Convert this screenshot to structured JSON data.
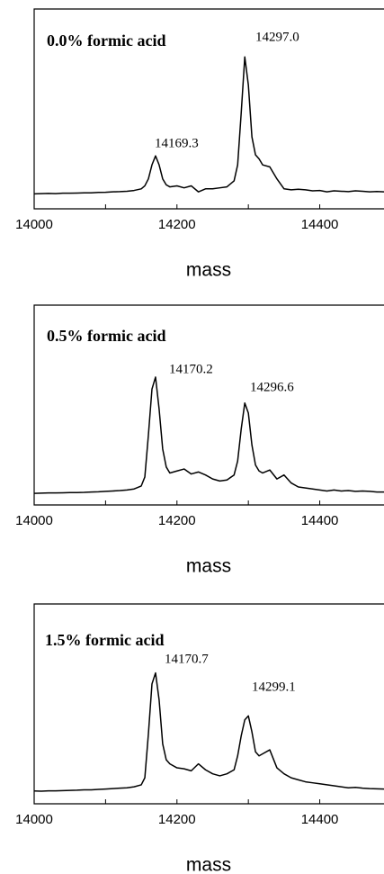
{
  "chart_data": [
    {
      "type": "line",
      "title": "0.0% formic acid",
      "annotations": [
        "14169.3",
        "14297.0"
      ],
      "xlabel": "mass",
      "x": [
        14000,
        14010,
        14020,
        14030,
        14040,
        14050,
        14060,
        14070,
        14080,
        14090,
        14100,
        14110,
        14120,
        14130,
        14140,
        14150,
        14155,
        14160,
        14165,
        14170,
        14175,
        14180,
        14185,
        14190,
        14200,
        14210,
        14220,
        14230,
        14240,
        14250,
        14260,
        14270,
        14280,
        14285,
        14290,
        14295,
        14300,
        14305,
        14310,
        14315,
        14320,
        14330,
        14340,
        14350,
        14360,
        14370,
        14380,
        14390,
        14400,
        14410,
        14420,
        14430,
        14440,
        14450,
        14460,
        14470,
        14480,
        14490
      ],
      "series": [
        {
          "color": "#000000",
          "values": [
            7.5,
            7.6,
            7.7,
            7.6,
            7.8,
            7.8,
            7.9,
            8.0,
            8.0,
            8.2,
            8.3,
            8.5,
            8.6,
            8.8,
            9.2,
            10.0,
            11.5,
            15,
            22,
            26.5,
            22,
            15,
            12,
            11,
            11.5,
            10.5,
            11.5,
            8.5,
            10,
            10,
            10.5,
            11,
            14,
            22,
            48,
            76,
            62,
            36,
            27,
            25,
            22,
            21,
            15,
            10,
            9.5,
            9.8,
            9.5,
            9,
            9.2,
            8.5,
            9,
            8.8,
            8.6,
            9,
            8.8,
            8.5,
            8.7,
            8.5
          ]
        }
      ],
      "xlim": [
        14000,
        14490
      ],
      "ylim": [
        0,
        100
      ],
      "xticks": [
        14000,
        14200,
        14400
      ],
      "x_minor_ticks": [
        14100,
        14300
      ]
    },
    {
      "type": "line",
      "title": "0.5% formic acid",
      "annotations": [
        "14170.2",
        "14296.6"
      ],
      "xlabel": "mass",
      "x": [
        14000,
        14010,
        14020,
        14030,
        14040,
        14050,
        14060,
        14070,
        14080,
        14090,
        14100,
        14110,
        14120,
        14130,
        14140,
        14150,
        14155,
        14160,
        14165,
        14170,
        14175,
        14180,
        14185,
        14190,
        14200,
        14210,
        14220,
        14230,
        14240,
        14250,
        14260,
        14270,
        14280,
        14285,
        14290,
        14295,
        14300,
        14305,
        14310,
        14315,
        14320,
        14330,
        14340,
        14350,
        14360,
        14370,
        14380,
        14390,
        14400,
        14410,
        14420,
        14430,
        14440,
        14450,
        14460,
        14470,
        14480,
        14490
      ],
      "series": [
        {
          "color": "#000000",
          "values": [
            5.8,
            5.9,
            6.0,
            6.0,
            6.1,
            6.2,
            6.2,
            6.3,
            6.5,
            6.6,
            6.8,
            7.0,
            7.2,
            7.5,
            8.0,
            9.5,
            14,
            35,
            58,
            64,
            48,
            28,
            19,
            16,
            17,
            18,
            15.5,
            16.5,
            15,
            13,
            12,
            12.5,
            15,
            22,
            38,
            51,
            46,
            30,
            20,
            17,
            16,
            17.5,
            13,
            15,
            11,
            9,
            8.5,
            8,
            7.5,
            7,
            7.5,
            7,
            7.2,
            6.8,
            7,
            6.8,
            6.5,
            6.5
          ]
        }
      ],
      "xlim": [
        14000,
        14490
      ],
      "ylim": [
        0,
        100
      ],
      "xticks": [
        14000,
        14200,
        14400
      ],
      "x_minor_ticks": [
        14100,
        14300
      ]
    },
    {
      "type": "line",
      "title": "1.5% formic acid",
      "annotations": [
        "14170.7",
        "14299.1"
      ],
      "xlabel": "mass",
      "x": [
        14000,
        14010,
        14020,
        14030,
        14040,
        14050,
        14060,
        14070,
        14080,
        14090,
        14100,
        14110,
        14120,
        14130,
        14140,
        14150,
        14155,
        14160,
        14165,
        14170,
        14175,
        14180,
        14185,
        14190,
        14200,
        14210,
        14220,
        14230,
        14240,
        14250,
        14260,
        14270,
        14280,
        14285,
        14290,
        14295,
        14300,
        14305,
        14310,
        14315,
        14320,
        14330,
        14340,
        14350,
        14360,
        14370,
        14380,
        14390,
        14400,
        14410,
        14420,
        14430,
        14440,
        14450,
        14460,
        14470,
        14480,
        14490
      ],
      "series": [
        {
          "color": "#000000",
          "values": [
            6.4,
            6.3,
            6.5,
            6.5,
            6.6,
            6.7,
            6.8,
            7.0,
            7.0,
            7.2,
            7.4,
            7.6,
            7.8,
            8.0,
            8.5,
            9.5,
            13,
            35,
            60,
            65.5,
            52,
            30,
            22,
            20,
            18,
            17.5,
            16.5,
            20,
            17,
            15,
            14,
            15,
            17,
            24,
            34,
            42,
            44,
            36,
            26,
            24,
            25,
            27,
            18,
            15,
            13,
            12,
            11,
            10.5,
            10,
            9.5,
            9,
            8.5,
            8,
            8.2,
            7.8,
            7.6,
            7.5,
            7.4
          ]
        }
      ],
      "xlim": [
        14000,
        14490
      ],
      "ylim": [
        0,
        100
      ],
      "xticks": [
        14000,
        14200,
        14400
      ],
      "x_minor_ticks": [
        14100,
        14300
      ]
    }
  ]
}
